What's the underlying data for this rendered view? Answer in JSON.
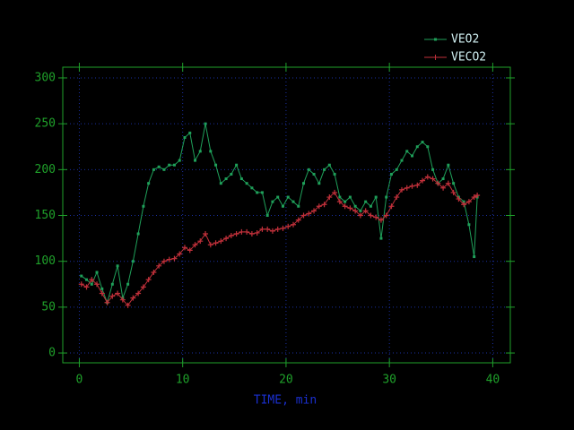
{
  "chart_data": {
    "type": "line",
    "xlabel": "TIME, min",
    "x": [
      0.2,
      0.7,
      1.2,
      1.7,
      2.2,
      2.7,
      3.2,
      3.7,
      4.2,
      4.7,
      5.2,
      5.7,
      6.2,
      6.7,
      7.2,
      7.7,
      8.2,
      8.7,
      9.2,
      9.7,
      10.2,
      10.7,
      11.2,
      11.7,
      12.2,
      12.7,
      13.2,
      13.7,
      14.2,
      14.7,
      15.2,
      15.7,
      16.2,
      16.7,
      17.2,
      17.7,
      18.2,
      18.7,
      19.2,
      19.7,
      20.2,
      20.7,
      21.2,
      21.7,
      22.2,
      22.7,
      23.2,
      23.7,
      24.2,
      24.7,
      25.2,
      25.7,
      26.2,
      26.7,
      27.2,
      27.7,
      28.2,
      28.7,
      29.2,
      29.7,
      30.2,
      30.7,
      31.2,
      31.7,
      32.2,
      32.7,
      33.2,
      33.7,
      34.2,
      34.7,
      35.2,
      35.7,
      36.2,
      36.7,
      37.2,
      37.7,
      38.2,
      38.5
    ],
    "series": [
      {
        "name": "VEO2",
        "color": "#1fa05a",
        "marker": "square",
        "values": [
          84,
          80,
          75,
          88,
          70,
          55,
          75,
          95,
          60,
          75,
          100,
          130,
          160,
          185,
          200,
          203,
          200,
          205,
          205,
          210,
          235,
          240,
          210,
          220,
          250,
          220,
          205,
          185,
          190,
          195,
          205,
          190,
          185,
          180,
          175,
          175,
          150,
          165,
          170,
          160,
          170,
          165,
          160,
          185,
          200,
          195,
          185,
          200,
          205,
          195,
          170,
          165,
          170,
          160,
          155,
          165,
          160,
          170,
          125,
          170,
          195,
          200,
          210,
          220,
          215,
          225,
          230,
          225,
          200,
          185,
          190,
          205,
          185,
          170,
          165,
          140,
          105,
          170
        ]
      },
      {
        "name": "VECO2",
        "color": "#c0303a",
        "marker": "plus",
        "values": [
          75,
          72,
          80,
          75,
          65,
          55,
          62,
          65,
          58,
          52,
          60,
          65,
          72,
          80,
          88,
          95,
          100,
          102,
          103,
          108,
          115,
          112,
          118,
          122,
          130,
          118,
          120,
          122,
          125,
          128,
          130,
          132,
          132,
          130,
          131,
          135,
          135,
          133,
          135,
          136,
          138,
          140,
          145,
          150,
          152,
          155,
          160,
          162,
          170,
          175,
          165,
          160,
          158,
          155,
          150,
          155,
          150,
          148,
          145,
          150,
          160,
          170,
          178,
          180,
          182,
          183,
          188,
          192,
          190,
          185,
          180,
          185,
          175,
          168,
          162,
          165,
          170,
          172
        ]
      }
    ],
    "xlim": [
      -1.6,
      41.7
    ],
    "ylim": [
      -10.7,
      311.7
    ],
    "xticks": [
      0,
      10,
      20,
      30,
      40
    ],
    "yticks": [
      0,
      50,
      100,
      150,
      200,
      250,
      300
    ],
    "grid": true,
    "legend": "upper right"
  }
}
